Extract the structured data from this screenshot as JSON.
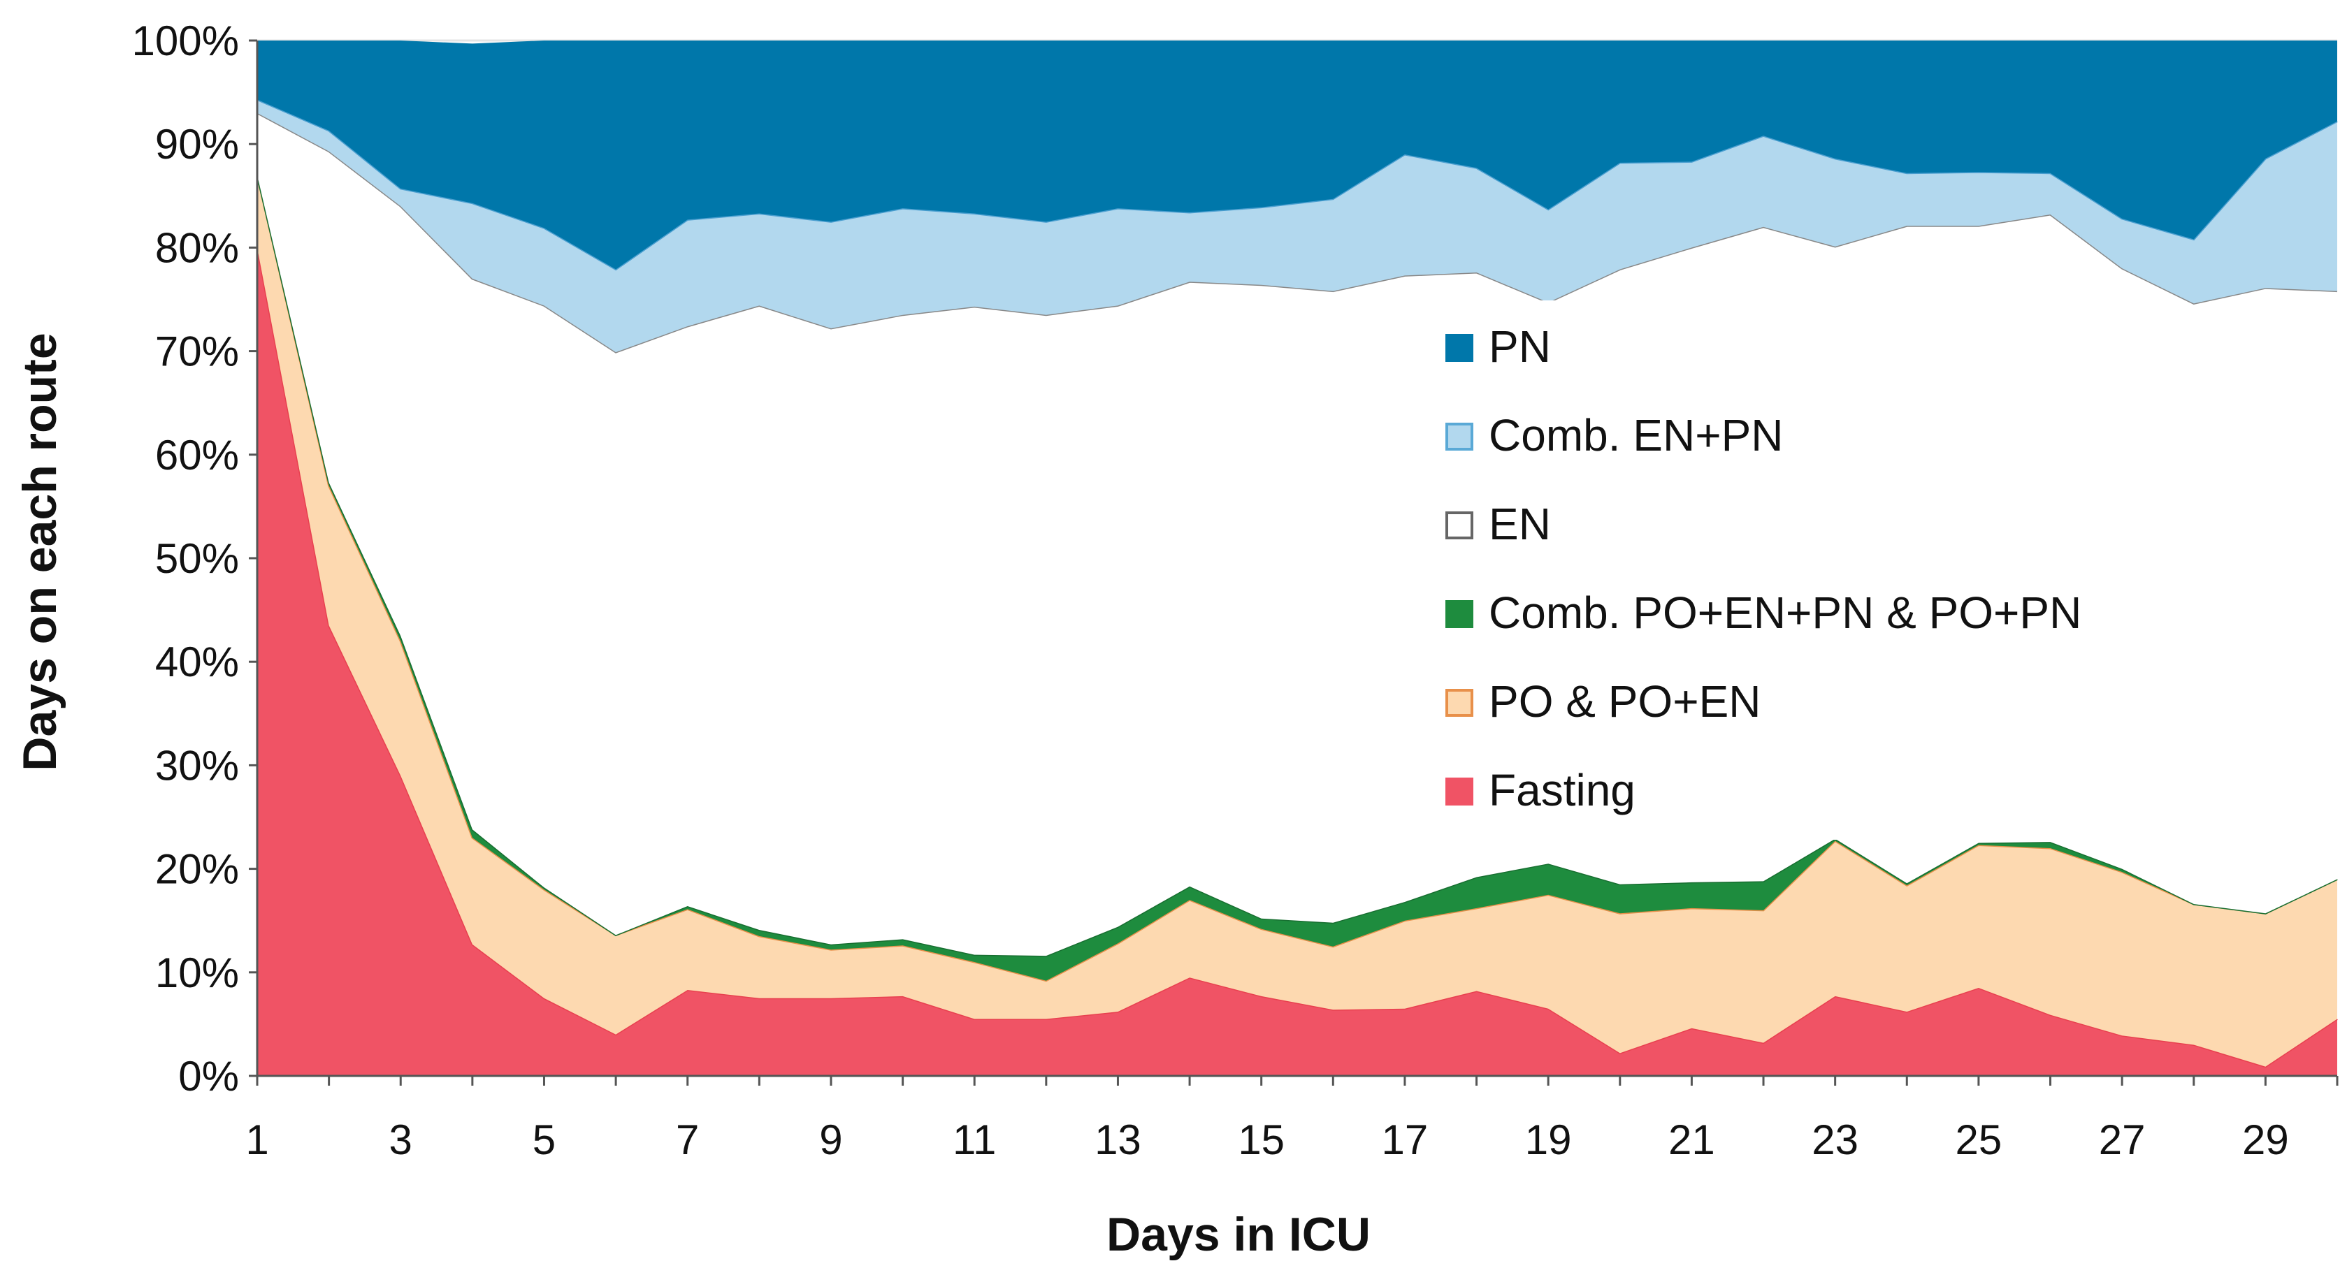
{
  "chart_data": {
    "type": "area",
    "stacked": true,
    "normalized": true,
    "title": "",
    "xlabel": "Days in ICU",
    "ylabel": "Days on each route",
    "xlim": [
      1,
      30
    ],
    "ylim": [
      0,
      100
    ],
    "x_tick_labels": [
      "1",
      "3",
      "5",
      "7",
      "9",
      "11",
      "13",
      "15",
      "17",
      "19",
      "21",
      "23",
      "25",
      "27",
      "29"
    ],
    "y_tick_labels": [
      "0%",
      "10%",
      "20%",
      "30%",
      "40%",
      "50%",
      "60%",
      "70%",
      "80%",
      "90%",
      "100%"
    ],
    "grid": "horizontal",
    "legend_position": "center-right",
    "x": [
      1,
      2,
      3,
      4,
      5,
      6,
      7,
      8,
      9,
      10,
      11,
      12,
      13,
      14,
      15,
      16,
      17,
      18,
      19,
      20,
      21,
      22,
      23,
      24,
      25,
      26,
      27,
      28,
      29,
      30
    ],
    "series": [
      {
        "name": "Fasting",
        "color": "#f05365",
        "values": [
          80,
          43.5,
          29,
          12.7,
          7.5,
          4,
          8.3,
          7.5,
          7.5,
          7.7,
          5.5,
          5.5,
          6.2,
          9.5,
          7.7,
          6.4,
          6.5,
          8.2,
          6.5,
          2.2,
          4.6,
          3.2,
          7.7,
          6.2,
          8.5,
          5.9,
          3.9,
          3,
          0.9,
          5.5
        ]
      },
      {
        "name": "PO & PO+EN",
        "color": "#fdd9b0",
        "values": [
          7,
          13.5,
          13,
          10.3,
          10.5,
          9.6,
          7.8,
          6,
          4.7,
          4.9,
          5.5,
          3.7,
          6.6,
          7.5,
          6.5,
          6.1,
          8.5,
          8,
          11,
          13.5,
          11.6,
          12.8,
          15,
          12.2,
          13.8,
          16.1,
          15.8,
          13.6,
          14.8,
          13.5
        ]
      },
      {
        "name": "Comb. PO+EN+PN & PO+PN",
        "color": "#1e8c3e",
        "values": [
          0,
          0.3,
          0.5,
          0.8,
          0.2,
          0,
          0.3,
          0.6,
          0.5,
          0.6,
          0.7,
          2.4,
          1.6,
          1.3,
          1,
          2.3,
          1.8,
          3,
          3,
          2.8,
          2.5,
          2.8,
          0.2,
          0.2,
          0.2,
          0.6,
          0.3,
          0,
          0,
          0
        ]
      },
      {
        "name": "EN",
        "color": "#ffffff",
        "values": [
          6,
          32,
          41.5,
          53.2,
          56.2,
          56.3,
          56,
          60.3,
          59.5,
          60.3,
          62.6,
          61.9,
          60,
          58.4,
          61.2,
          61,
          60.5,
          58.4,
          54.2,
          59.4,
          61.3,
          63.2,
          57.2,
          63.5,
          59.6,
          60.6,
          58,
          58,
          60.4,
          56.8
        ]
      },
      {
        "name": "Comb. EN+PN",
        "color": "#b2d8ee",
        "values": [
          1.3,
          2,
          1.7,
          7.3,
          7.5,
          8,
          10.3,
          8.9,
          10.3,
          10.3,
          9,
          9,
          9.4,
          6.7,
          7.5,
          8.9,
          11.7,
          10.1,
          9,
          10.3,
          8.3,
          8.8,
          8.5,
          5.1,
          5.2,
          4,
          4.8,
          6.2,
          12.5,
          16.4
        ]
      },
      {
        "name": "PN",
        "color": "#0077aa",
        "values": [
          5.7,
          8.7,
          14.3,
          15.4,
          18.1,
          22.1,
          17.3,
          16.7,
          17.5,
          16.2,
          16.7,
          17.5,
          16.2,
          16.6,
          16.1,
          15.3,
          11,
          12.3,
          16.3,
          11.8,
          11.7,
          9.2,
          11.4,
          12.8,
          12.7,
          12.8,
          17.2,
          19.2,
          11.4,
          7.8
        ]
      }
    ],
    "legend": [
      {
        "label": "PN",
        "color": "#0077aa",
        "border": "#0077aa"
      },
      {
        "label": "Comb. EN+PN",
        "color": "#b2d8ee",
        "border": "#5aa9d6"
      },
      {
        "label": "EN",
        "color": "#ffffff",
        "border": "#666666"
      },
      {
        "label": "Comb. PO+EN+PN  & PO+PN",
        "color": "#1e8c3e",
        "border": "#1e8c3e"
      },
      {
        "label": "PO & PO+EN",
        "color": "#fdd9b0",
        "border": "#e8904a"
      },
      {
        "label": "Fasting",
        "color": "#f05365",
        "border": "#f05365"
      }
    ]
  }
}
